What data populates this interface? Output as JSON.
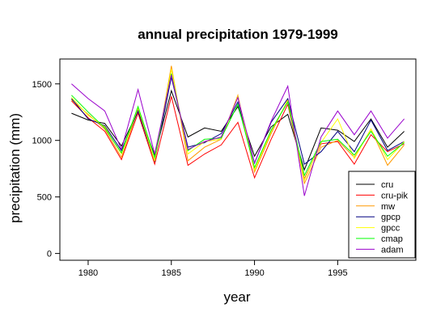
{
  "chart_data": {
    "type": "line",
    "title": "annual precipitation 1979-1999",
    "xlabel": "year",
    "ylabel": "precipitation (mm)",
    "xlim": [
      1978.3,
      1999.7
    ],
    "ylim": [
      -60,
      1720
    ],
    "xticks": [
      1980,
      1985,
      1990,
      1995
    ],
    "yticks": [
      0,
      500,
      1000,
      1500
    ],
    "grid": false,
    "legend_position": "bottom-right",
    "x": [
      1979,
      1980,
      1981,
      1982,
      1983,
      1984,
      1985,
      1986,
      1987,
      1988,
      1989,
      1990,
      1991,
      1992,
      1993,
      1994,
      1995,
      1996,
      1997,
      1998,
      1999
    ],
    "series": [
      {
        "name": "cru",
        "color": "#000000",
        "values": [
          1240,
          1180,
          1150,
          950,
          1260,
          870,
          1440,
          1030,
          1110,
          1080,
          1300,
          860,
          1120,
          1230,
          740,
          1110,
          1090,
          990,
          1190,
          940,
          1080
        ]
      },
      {
        "name": "cru-pik",
        "color": "#ff0000",
        "values": [
          1350,
          1200,
          1080,
          830,
          1240,
          790,
          1390,
          780,
          880,
          960,
          1160,
          670,
          1010,
          1320,
          660,
          970,
          990,
          790,
          1050,
          900,
          970
        ]
      },
      {
        "name": "mw",
        "color": "#ff9900",
        "values": [
          1360,
          1230,
          1100,
          850,
          1270,
          810,
          1660,
          820,
          940,
          1010,
          1400,
          720,
          1060,
          1360,
          620,
          940,
          1000,
          850,
          1100,
          780,
          960
        ]
      },
      {
        "name": "gpcp",
        "color": "#000080",
        "values": [
          1370,
          1190,
          1130,
          910,
          1260,
          820,
          1560,
          940,
          980,
          1060,
          1340,
          800,
          1160,
          1370,
          790,
          900,
          1080,
          900,
          1180,
          910,
          990
        ]
      },
      {
        "name": "gpcc",
        "color": "#ffff00",
        "values": [
          1380,
          1220,
          1120,
          880,
          1290,
          820,
          1630,
          880,
          990,
          1010,
          1390,
          740,
          1080,
          1350,
          650,
          980,
          1190,
          840,
          1100,
          830,
          990
        ]
      },
      {
        "name": "cmap",
        "color": "#00ff00",
        "values": [
          1400,
          1250,
          1110,
          890,
          1300,
          850,
          1590,
          910,
          1010,
          1020,
          1320,
          760,
          1090,
          1340,
          690,
          990,
          1010,
          870,
          1080,
          860,
          980
        ]
      },
      {
        "name": "adam",
        "color": "#9900cc",
        "values": [
          1500,
          1370,
          1260,
          920,
          1450,
          880,
          1580,
          920,
          990,
          1030,
          1380,
          800,
          1170,
          1480,
          510,
          1030,
          1260,
          1050,
          1260,
          1020,
          1190
        ]
      }
    ]
  }
}
